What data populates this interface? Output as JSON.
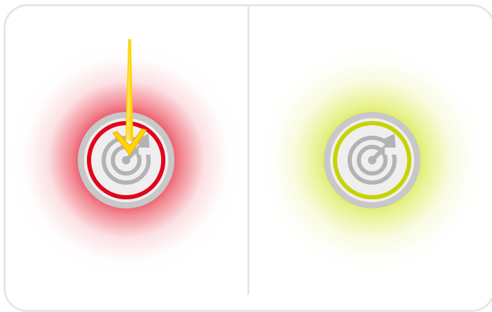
{
  "colors": {
    "frame_border": "#e6e6e6",
    "badge_outer": "#c8c8c8",
    "badge_inner": "#efefef",
    "radar_gray": "#b3b3b3",
    "alert_red": "#e0061b",
    "ok_lime": "#c7d300",
    "arrow_yellow": "#ffd400",
    "arrow_yellow_edge": "#f2a900"
  },
  "panels": [
    {
      "id": "left",
      "status": "alert",
      "ring_color": "#e0061b",
      "glow": "red",
      "icon": "radar-icon",
      "pointer": "down-arrow-icon"
    },
    {
      "id": "right",
      "status": "ok",
      "ring_color": "#c7d300",
      "glow": "lime",
      "icon": "radar-icon"
    }
  ]
}
